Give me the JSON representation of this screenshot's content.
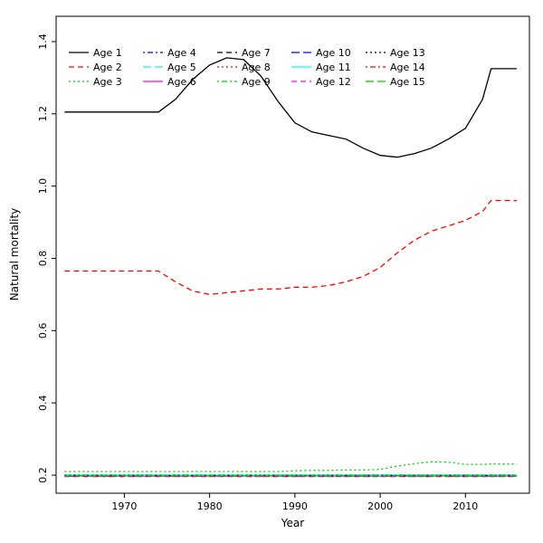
{
  "figure": {
    "background": "#ffffff"
  },
  "chart_data": {
    "type": "line",
    "title": "",
    "xlabel": "Year",
    "ylabel": "Natural mortality",
    "xlim": [
      1962,
      2017.5
    ],
    "ylim": [
      0.15,
      1.47
    ],
    "xticks": [
      1970,
      1980,
      1990,
      2000,
      2010
    ],
    "yticks": [
      0.2,
      0.4,
      0.6,
      0.8,
      1.0,
      1.2,
      1.4
    ],
    "grid": false,
    "legend_position": "top-left",
    "legend_columns": 5,
    "x": [
      1963,
      1966,
      1970,
      1974,
      1976,
      1978,
      1980,
      1982,
      1984,
      1986,
      1988,
      1990,
      1992,
      1994,
      1996,
      1998,
      2000,
      2002,
      2004,
      2006,
      2008,
      2010,
      2012,
      2013,
      2016
    ],
    "series": [
      {
        "name": "Age 1",
        "color": "#000000",
        "dash": "solid",
        "values": [
          1.205,
          1.205,
          1.205,
          1.205,
          1.24,
          1.295,
          1.335,
          1.355,
          1.35,
          1.305,
          1.235,
          1.175,
          1.15,
          1.14,
          1.13,
          1.105,
          1.085,
          1.08,
          1.09,
          1.105,
          1.13,
          1.16,
          1.24,
          1.325,
          1.325
        ]
      },
      {
        "name": "Age 2",
        "color": "#FF0000",
        "dash": "dashed",
        "values": [
          0.765,
          0.765,
          0.765,
          0.765,
          0.735,
          0.71,
          0.7,
          0.705,
          0.71,
          0.715,
          0.715,
          0.72,
          0.72,
          0.725,
          0.735,
          0.75,
          0.775,
          0.815,
          0.85,
          0.875,
          0.89,
          0.905,
          0.93,
          0.96,
          0.96
        ]
      },
      {
        "name": "Age 3",
        "color": "#00CD00",
        "dash": "dotted",
        "values": [
          0.21,
          0.21,
          0.21,
          0.21,
          0.21,
          0.21,
          0.21,
          0.21,
          0.21,
          0.21,
          0.21,
          0.212,
          0.213,
          0.213,
          0.214,
          0.214,
          0.216,
          0.225,
          0.232,
          0.237,
          0.236,
          0.23,
          0.23,
          0.231,
          0.231
        ]
      },
      {
        "name": "Age 4",
        "color": "#0000FF",
        "dash": "dotdash",
        "constant": 0.2
      },
      {
        "name": "Age 5",
        "color": "#00FFFF",
        "dash": "longdash",
        "constant": 0.199
      },
      {
        "name": "Age 6",
        "color": "#FF00FF",
        "dash": "solid",
        "constant": 0.198
      },
      {
        "name": "Age 7",
        "color": "#000000",
        "dash": "dashed",
        "constant": 0.2
      },
      {
        "name": "Age 8",
        "color": "#FF0000",
        "dash": "dotted",
        "constant": 0.197
      },
      {
        "name": "Age 9",
        "color": "#00CD00",
        "dash": "dotdash",
        "constant": 0.199
      },
      {
        "name": "Age 10",
        "color": "#0000FF",
        "dash": "longdash",
        "constant": 0.198
      },
      {
        "name": "Age 11",
        "color": "#00FFFF",
        "dash": "solid",
        "constant": 0.2
      },
      {
        "name": "Age 12",
        "color": "#FF00FF",
        "dash": "dashed",
        "constant": 0.196
      },
      {
        "name": "Age 13",
        "color": "#000000",
        "dash": "dotted",
        "constant": 0.199
      },
      {
        "name": "Age 14",
        "color": "#FF0000",
        "dash": "dotdash",
        "constant": 0.197
      },
      {
        "name": "Age 15",
        "color": "#00CD00",
        "dash": "longdash",
        "constant": 0.198
      }
    ]
  }
}
